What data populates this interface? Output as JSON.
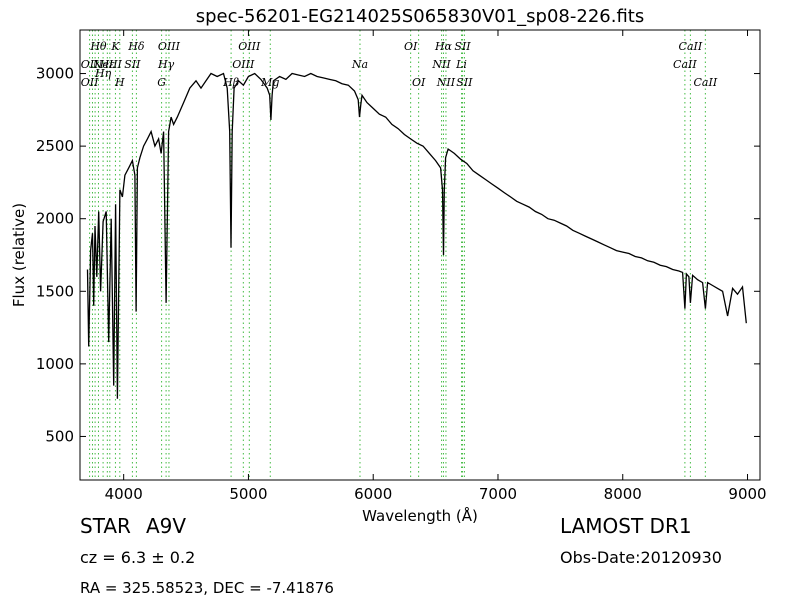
{
  "chart_data": {
    "type": "line",
    "title": "spec-56201-EG214025S065830V01_sp08-226.fits",
    "xlabel": "Wavelength (Å)",
    "ylabel": "Flux (relative)",
    "xlim": [
      3650,
      9100
    ],
    "ylim": [
      200,
      3300
    ],
    "xticks": [
      4000,
      5000,
      6000,
      7000,
      8000,
      9000
    ],
    "yticks": [
      500,
      1000,
      1500,
      2000,
      2500,
      3000
    ],
    "grid": false,
    "line_color": "#000000",
    "marker_color": "#44bb44",
    "series": [
      {
        "x": [
          3710,
          3720,
          3730,
          3735,
          3750,
          3760,
          3770,
          3785,
          3800,
          3815,
          3835,
          3860,
          3880,
          3900,
          3920,
          3935,
          3950,
          3970,
          3990,
          4010,
          4040,
          4070,
          4090,
          4100,
          4110,
          4130,
          4160,
          4190,
          4220,
          4250,
          4280,
          4300,
          4320,
          4340,
          4360,
          4380,
          4400,
          4430,
          4480,
          4530,
          4580,
          4620,
          4660,
          4700,
          4750,
          4800,
          4830,
          4850,
          4860,
          4870,
          4885,
          4920,
          4960,
          5000,
          5050,
          5100,
          5150,
          5170,
          5180,
          5190,
          5200,
          5250,
          5300,
          5350,
          5400,
          5450,
          5500,
          5550,
          5600,
          5650,
          5700,
          5750,
          5800,
          5850,
          5880,
          5890,
          5900,
          5910,
          5950,
          6000,
          6050,
          6100,
          6150,
          6200,
          6250,
          6300,
          6350,
          6400,
          6450,
          6500,
          6540,
          6555,
          6563,
          6570,
          6580,
          6600,
          6650,
          6700,
          6750,
          6800,
          6850,
          6900,
          6950,
          7000,
          7050,
          7100,
          7150,
          7200,
          7250,
          7300,
          7350,
          7400,
          7450,
          7500,
          7550,
          7600,
          7650,
          7700,
          7750,
          7800,
          7850,
          7900,
          7950,
          8000,
          8050,
          8100,
          8150,
          8200,
          8250,
          8300,
          8350,
          8400,
          8450,
          8480,
          8498,
          8510,
          8530,
          8542,
          8560,
          8600,
          8640,
          8662,
          8680,
          8720,
          8760,
          8800,
          8840,
          8880,
          8920,
          8960,
          8990
        ],
        "y": [
          1650,
          1120,
          1550,
          1780,
          1900,
          1400,
          1950,
          1600,
          2050,
          1500,
          1980,
          2050,
          1150,
          2000,
          850,
          2100,
          760,
          2200,
          2150,
          2300,
          2350,
          2400,
          2300,
          1360,
          2350,
          2420,
          2500,
          2550,
          2600,
          2500,
          2550,
          2450,
          2600,
          1420,
          2600,
          2700,
          2650,
          2700,
          2800,
          2900,
          2950,
          2900,
          2950,
          3000,
          2980,
          3000,
          2900,
          2600,
          1800,
          2600,
          2900,
          2950,
          2920,
          2980,
          3000,
          2960,
          2900,
          2850,
          2680,
          2850,
          2950,
          2980,
          2960,
          3000,
          2990,
          2980,
          3000,
          2980,
          2970,
          2960,
          2950,
          2930,
          2920,
          2880,
          2820,
          2700,
          2780,
          2850,
          2800,
          2760,
          2720,
          2700,
          2650,
          2620,
          2580,
          2550,
          2520,
          2500,
          2450,
          2400,
          2350,
          2200,
          1750,
          2200,
          2420,
          2480,
          2450,
          2410,
          2380,
          2330,
          2300,
          2270,
          2240,
          2210,
          2180,
          2150,
          2120,
          2100,
          2080,
          2050,
          2030,
          2000,
          1990,
          1970,
          1950,
          1920,
          1900,
          1880,
          1860,
          1840,
          1820,
          1800,
          1780,
          1770,
          1760,
          1740,
          1730,
          1710,
          1700,
          1680,
          1670,
          1650,
          1640,
          1630,
          1380,
          1620,
          1600,
          1420,
          1610,
          1580,
          1560,
          1380,
          1560,
          1540,
          1520,
          1500,
          1330,
          1520,
          1480,
          1530,
          1280
        ]
      }
    ],
    "line_markers": [
      {
        "wavelength": 3727,
        "labels": [
          {
            "text": "OII",
            "row": 1
          },
          {
            "text": "OII",
            "row": 2
          }
        ]
      },
      {
        "wavelength": 3750,
        "labels": []
      },
      {
        "wavelength": 3771,
        "labels": []
      },
      {
        "wavelength": 3798,
        "labels": [
          {
            "text": "Hθ",
            "row": 0
          }
        ]
      },
      {
        "wavelength": 3835,
        "labels": [
          {
            "text": "Hη",
            "row": 1.5
          }
        ]
      },
      {
        "wavelength": 3869,
        "labels": [
          {
            "text": "Hε",
            "row": 1
          },
          {
            "text": "NeIII",
            "row": 1
          }
        ]
      },
      {
        "wavelength": 3889,
        "labels": []
      },
      {
        "wavelength": 3934,
        "labels": [
          {
            "text": "K",
            "row": 0
          }
        ]
      },
      {
        "wavelength": 3969,
        "labels": [
          {
            "text": "H",
            "row": 2
          }
        ]
      },
      {
        "wavelength": 4070,
        "labels": [
          {
            "text": "SII",
            "row": 1
          }
        ]
      },
      {
        "wavelength": 4102,
        "labels": [
          {
            "text": "Hδ",
            "row": 0
          }
        ]
      },
      {
        "wavelength": 4304,
        "labels": [
          {
            "text": "G",
            "row": 2
          }
        ]
      },
      {
        "wavelength": 4340,
        "labels": [
          {
            "text": "Hγ",
            "row": 1
          }
        ]
      },
      {
        "wavelength": 4363,
        "labels": [
          {
            "text": "OIII",
            "row": 0
          }
        ]
      },
      {
        "wavelength": 4861,
        "labels": [
          {
            "text": "Hβ",
            "row": 2
          }
        ]
      },
      {
        "wavelength": 4959,
        "labels": [
          {
            "text": "OIII",
            "row": 1
          }
        ]
      },
      {
        "wavelength": 5007,
        "labels": [
          {
            "text": "OIII",
            "row": 0
          }
        ]
      },
      {
        "wavelength": 5175,
        "labels": [
          {
            "text": "Mg",
            "row": 2
          }
        ]
      },
      {
        "wavelength": 5894,
        "labels": [
          {
            "text": "Na",
            "row": 1
          }
        ]
      },
      {
        "wavelength": 6300,
        "labels": [
          {
            "text": "OI",
            "row": 0
          }
        ]
      },
      {
        "wavelength": 6364,
        "labels": [
          {
            "text": "OI",
            "row": 2
          }
        ]
      },
      {
        "wavelength": 6548,
        "labels": [
          {
            "text": "NII",
            "row": 1
          }
        ]
      },
      {
        "wavelength": 6563,
        "labels": [
          {
            "text": "Hα",
            "row": 0
          }
        ]
      },
      {
        "wavelength": 6583,
        "labels": [
          {
            "text": "NII",
            "row": 2
          }
        ]
      },
      {
        "wavelength": 6708,
        "labels": [
          {
            "text": "Li",
            "row": 1
          }
        ]
      },
      {
        "wavelength": 6716,
        "labels": [
          {
            "text": "SII",
            "row": 0
          }
        ]
      },
      {
        "wavelength": 6731,
        "labels": [
          {
            "text": "SII",
            "row": 2
          }
        ]
      },
      {
        "wavelength": 8498,
        "labels": [
          {
            "text": "CaII",
            "row": 1
          }
        ]
      },
      {
        "wavelength": 8542,
        "labels": [
          {
            "text": "CaII",
            "row": 0
          }
        ]
      },
      {
        "wavelength": 8662,
        "labels": [
          {
            "text": "CaII",
            "row": 2
          }
        ]
      }
    ]
  },
  "info": {
    "class_label": "STAR",
    "subclass": "A9V",
    "redshift": "cz = 6.3 ± 0.2",
    "coordinates": "RA = 325.58523, DEC = -7.41876",
    "survey": "LAMOST DR1",
    "obs_date": "Obs-Date:20120930"
  }
}
